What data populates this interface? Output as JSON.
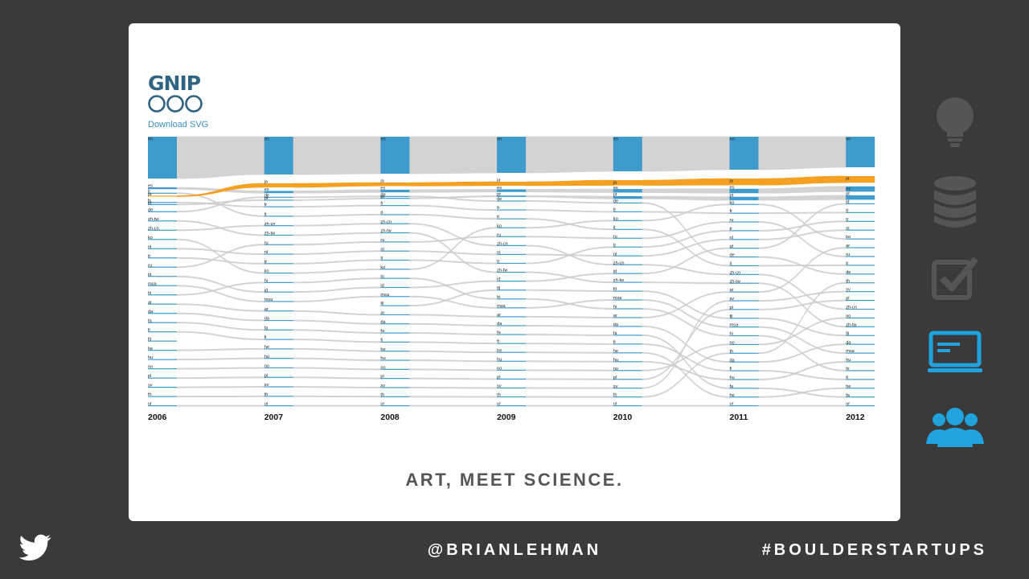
{
  "logo": {
    "text": "GNIP"
  },
  "download_label": "Download SVG",
  "tagline": "ART, MEET SCIENCE.",
  "footer": {
    "handle": "@BRIANLEHMAN",
    "hashtag": "#BOULDERSTARTUPS"
  },
  "colors": {
    "bar": "#3e9bcc",
    "flow": "#cccccc",
    "highlight": "#f5a020",
    "link": "#3b8fc4",
    "background": "#3a3a3a"
  },
  "sidebar_icons": [
    "lightbulb-icon",
    "database-icon",
    "checkbox-icon",
    "laptop-icon",
    "users-icon"
  ],
  "active_sidebar_icon": "laptop-icon",
  "chart_data": {
    "type": "alluvial",
    "highlight_series": "ja",
    "years": [
      {
        "year": "2006",
        "rankings": [
          "en",
          "es",
          "it",
          "fr",
          "de",
          "ja",
          "zh-tw",
          "zh-cn",
          "ko",
          "nl",
          "pt",
          "tr",
          "ru",
          "id",
          "msa",
          "hi",
          "ar",
          "da",
          "fa",
          "fi",
          "fil",
          "he",
          "hu",
          "no",
          "pl",
          "sv",
          "th",
          "ur"
        ]
      },
      {
        "year": "2007",
        "rankings": [
          "en",
          "ja",
          "es",
          "de",
          "fr",
          "it",
          "pt",
          "zh-cn",
          "zh-tw",
          "ru",
          "nl",
          "tr",
          "ko",
          "hi",
          "id",
          "msa",
          "ar",
          "da",
          "fa",
          "fi",
          "he",
          "hu",
          "no",
          "pl",
          "sv",
          "th",
          "ur"
        ]
      },
      {
        "year": "2008",
        "rankings": [
          "en",
          "ja",
          "es",
          "de",
          "fr",
          "pt",
          "it",
          "zh-cn",
          "zh-tw",
          "ru",
          "nl",
          "tr",
          "ko",
          "hi",
          "id",
          "msa",
          "fil",
          "ar",
          "da",
          "fa",
          "fi",
          "he",
          "hu",
          "no",
          "pl",
          "sv",
          "th",
          "ur"
        ]
      },
      {
        "year": "2009",
        "rankings": [
          "en",
          "ja",
          "es",
          "pt",
          "de",
          "fr",
          "it",
          "ko",
          "ru",
          "zh-cn",
          "nl",
          "tr",
          "zh-tw",
          "id",
          "fil",
          "hi",
          "msa",
          "ar",
          "da",
          "fa",
          "fi",
          "he",
          "hu",
          "no",
          "pl",
          "sv",
          "th",
          "ur"
        ]
      },
      {
        "year": "2010",
        "rankings": [
          "en",
          "ja",
          "es",
          "pt",
          "de",
          "fr",
          "ko",
          "it",
          "ru",
          "tr",
          "nl",
          "zh-cn",
          "id",
          "zh-tw",
          "fil",
          "msa",
          "hi",
          "ar",
          "da",
          "fa",
          "fi",
          "he",
          "hu",
          "no",
          "pl",
          "sv",
          "th",
          "ur"
        ]
      },
      {
        "year": "2011",
        "rankings": [
          "en",
          "ja",
          "es",
          "pt",
          "ko",
          "fr",
          "ru",
          "tr",
          "nl",
          "id",
          "de",
          "it",
          "zh-cn",
          "zh-tw",
          "ar",
          "sv",
          "pl",
          "fil",
          "msa",
          "hi",
          "no",
          "th",
          "da",
          "fi",
          "hu",
          "fa",
          "he",
          "ur"
        ]
      },
      {
        "year": "2012",
        "rankings": [
          "en",
          "ja",
          "es",
          "pt",
          "id",
          "fr",
          "tr",
          "nl",
          "ko",
          "ar",
          "ru",
          "it",
          "de",
          "th",
          "sv",
          "pl",
          "zh-cn",
          "no",
          "zh-tw",
          "fil",
          "da",
          "msa",
          "hu",
          "hi",
          "fi",
          "he",
          "fa",
          "ur"
        ]
      }
    ],
    "share": {
      "en": [
        0.52,
        0.47,
        0.46,
        0.45,
        0.43,
        0.41,
        0.38
      ],
      "ja": [
        0.005,
        0.045,
        0.04,
        0.045,
        0.06,
        0.075,
        0.075
      ],
      "es": [
        0.02,
        0.025,
        0.03,
        0.03,
        0.04,
        0.05,
        0.06
      ],
      "pt": [
        0.005,
        0.01,
        0.01,
        0.015,
        0.03,
        0.04,
        0.05
      ]
    }
  }
}
